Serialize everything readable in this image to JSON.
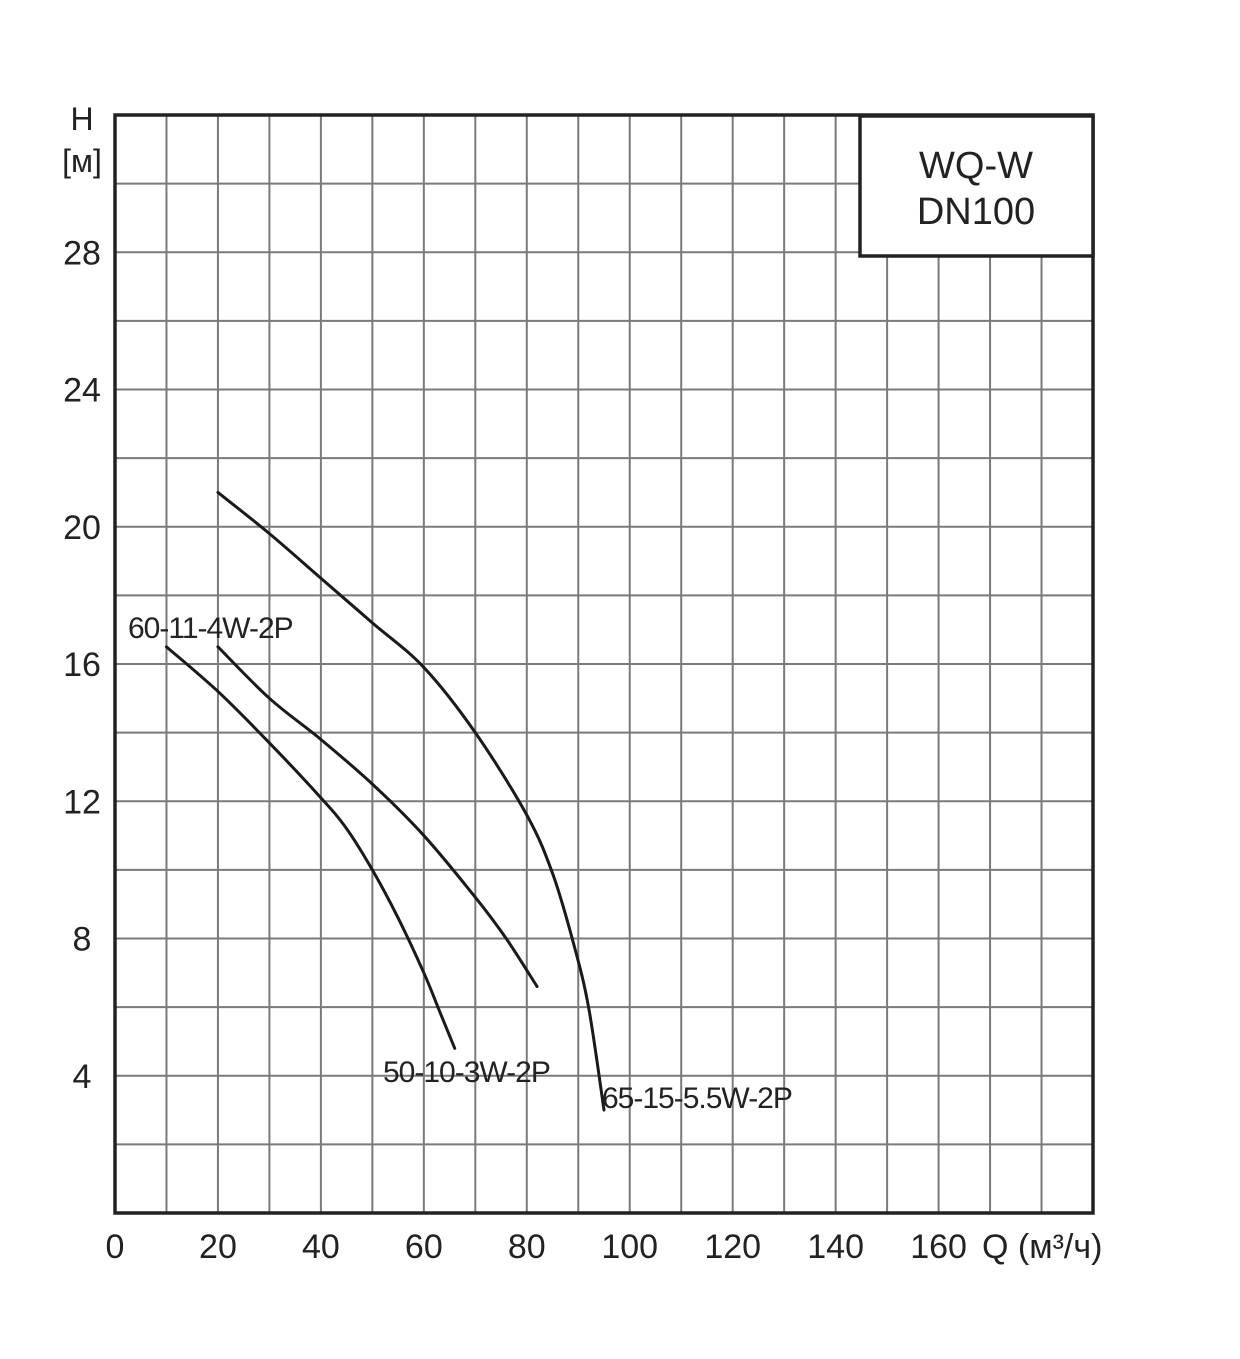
{
  "chart_data": {
    "type": "line",
    "title_lines": [
      "WQ-W",
      "DN100"
    ],
    "xlabel": "Q (м³/ч)",
    "ylabel_lines": [
      "H",
      "[м]"
    ],
    "xlim": [
      0,
      190
    ],
    "ylim": [
      0,
      32
    ],
    "x_ticks": [
      0,
      20,
      40,
      60,
      80,
      100,
      120,
      140,
      160
    ],
    "y_ticks": [
      4,
      8,
      12,
      16,
      20,
      24,
      28
    ],
    "grid": true,
    "grid_x_step": 10,
    "grid_y_step": 2,
    "series": [
      {
        "name": "60-11-4W-2P",
        "points": [
          [
            10,
            16.5
          ],
          [
            20,
            15.2
          ],
          [
            30,
            13.7
          ],
          [
            40,
            12.1
          ],
          [
            45,
            11.2
          ],
          [
            50,
            10.0
          ],
          [
            55,
            8.6
          ],
          [
            60,
            7.0
          ],
          [
            63,
            5.9
          ],
          [
            66,
            4.8
          ]
        ]
      },
      {
        "name": "50-10-3W-2P",
        "points": [
          [
            20,
            16.5
          ],
          [
            30,
            15.0
          ],
          [
            40,
            13.8
          ],
          [
            50,
            12.5
          ],
          [
            60,
            11.0
          ],
          [
            70,
            9.2
          ],
          [
            76,
            8.0
          ],
          [
            82,
            6.6
          ]
        ]
      },
      {
        "name": "65-15-5.5W-2P",
        "points": [
          [
            20,
            21.0
          ],
          [
            30,
            19.8
          ],
          [
            40,
            18.5
          ],
          [
            50,
            17.2
          ],
          [
            60,
            15.9
          ],
          [
            70,
            14.0
          ],
          [
            80,
            11.6
          ],
          [
            85,
            9.9
          ],
          [
            89,
            7.9
          ],
          [
            92,
            6.0
          ],
          [
            95,
            3.0
          ]
        ]
      }
    ]
  }
}
